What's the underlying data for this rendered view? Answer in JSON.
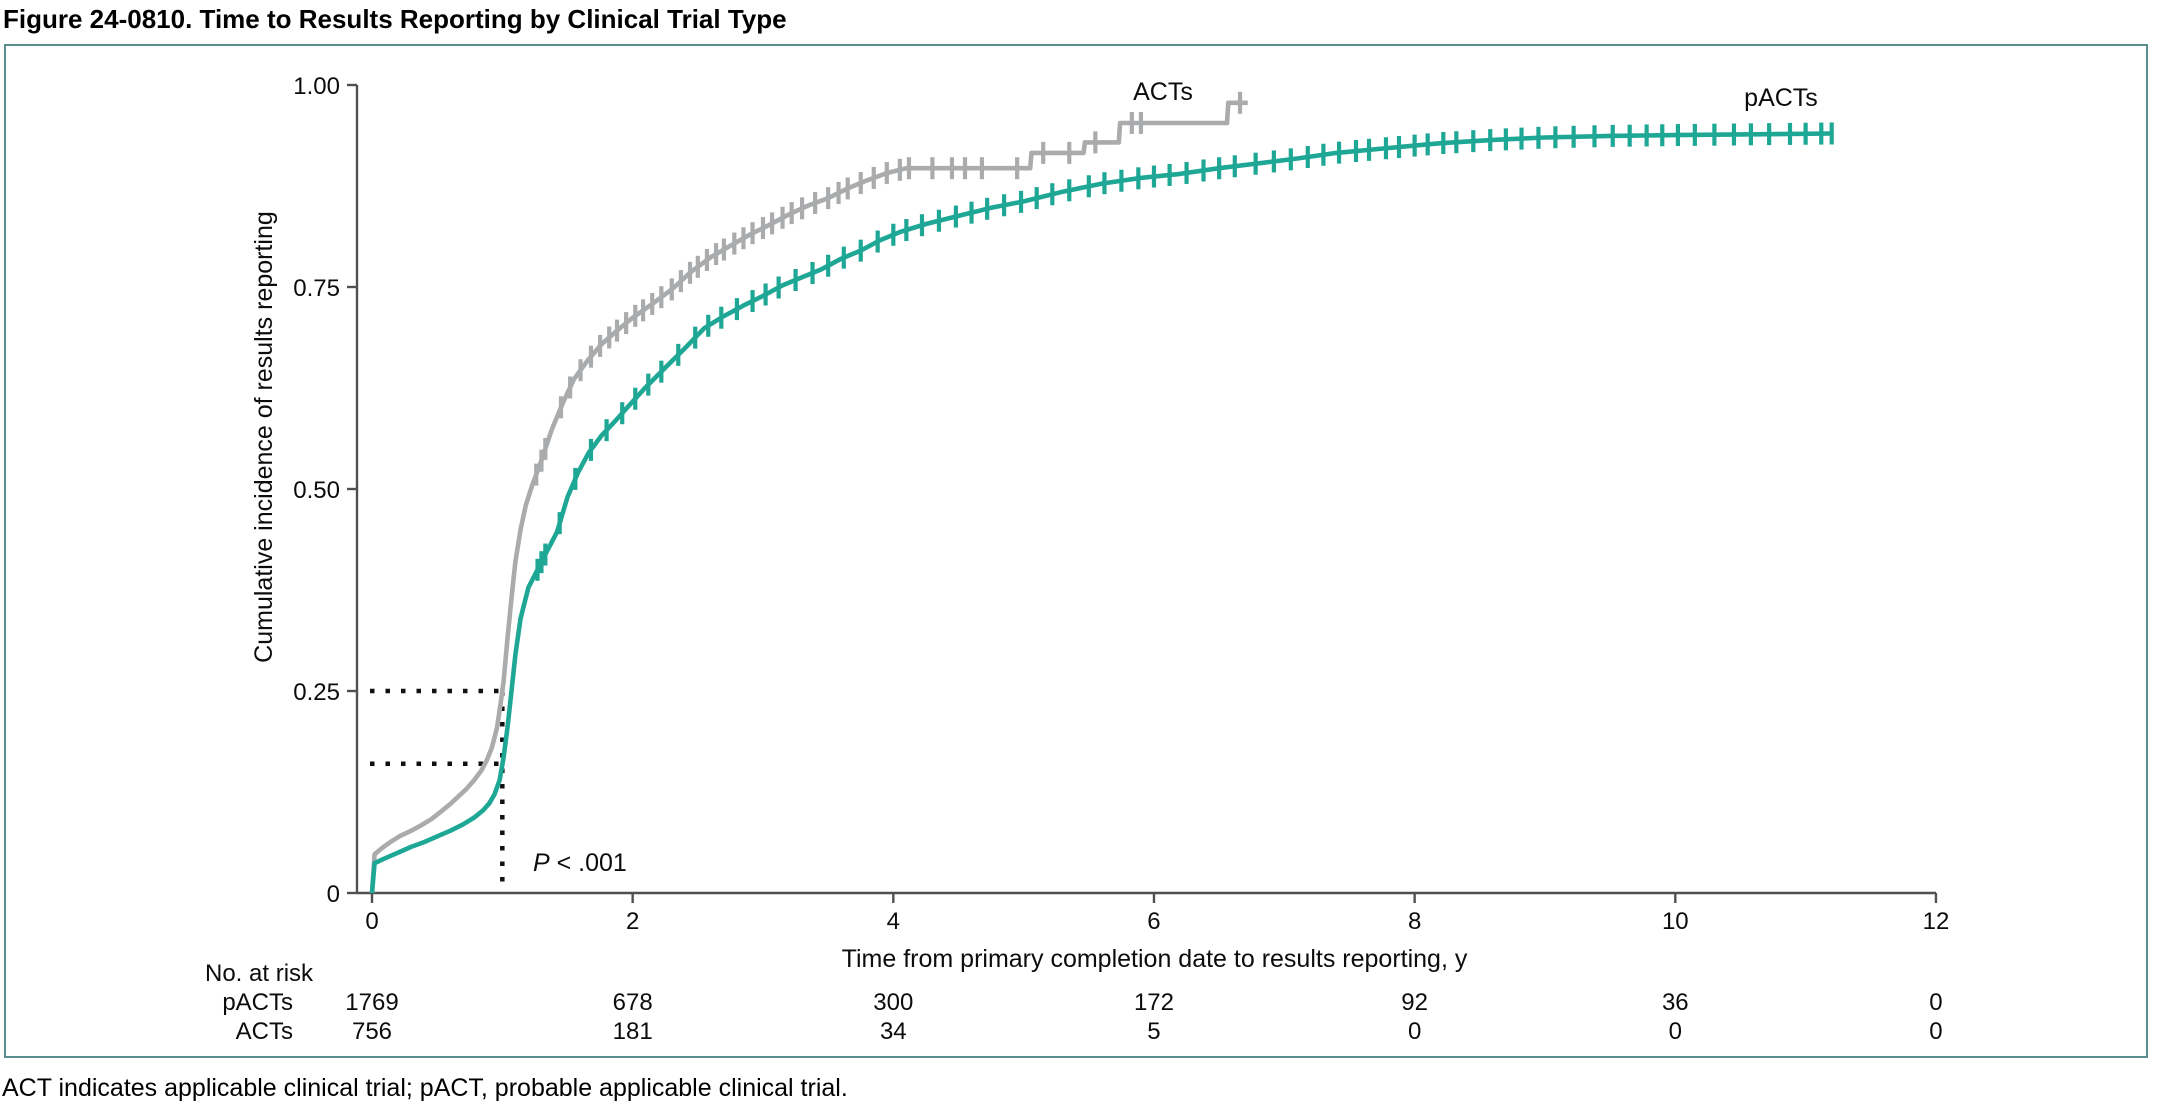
{
  "title": "Figure 24-0810. Time to Results Reporting by Clinical Trial Type",
  "footnote": "ACT indicates applicable clinical trial; pACT, probable applicable clinical trial.",
  "colors": {
    "act_gray": "#a9abad",
    "pact_teal": "#1ea795",
    "panel_border": "#5d8e8e",
    "axis": "#4f5052",
    "guide": "#111111"
  },
  "chart_data": {
    "type": "line",
    "subtype": "cumulative-incidence-step-curves",
    "title": "",
    "xlabel": "Time from primary completion date to results reporting, y",
    "ylabel": "Cumulative incidence of results reporting",
    "xlim": [
      0,
      12
    ],
    "ylim": [
      0,
      1
    ],
    "grid": false,
    "x_ticks": [
      {
        "v": 0,
        "label": "0"
      },
      {
        "v": 2,
        "label": "2"
      },
      {
        "v": 4,
        "label": "4"
      },
      {
        "v": 6,
        "label": "6"
      },
      {
        "v": 8,
        "label": "8"
      },
      {
        "v": 10,
        "label": "10"
      },
      {
        "v": 12,
        "label": "12"
      }
    ],
    "y_ticks": [
      {
        "v": 0,
        "label": "0"
      },
      {
        "v": 0.25,
        "label": "0.25"
      },
      {
        "v": 0.5,
        "label": "0.50"
      },
      {
        "v": 0.75,
        "label": "0.75"
      },
      {
        "v": 1,
        "label": "1.00"
      }
    ],
    "series": [
      {
        "name": "ACTs",
        "color": "#a9abad",
        "points": [
          [
            0,
            0
          ],
          [
            0.02,
            0.048
          ],
          [
            0.08,
            0.056
          ],
          [
            0.15,
            0.064
          ],
          [
            0.22,
            0.071
          ],
          [
            0.3,
            0.077
          ],
          [
            0.38,
            0.084
          ],
          [
            0.46,
            0.092
          ],
          [
            0.53,
            0.101
          ],
          [
            0.6,
            0.11
          ],
          [
            0.66,
            0.119
          ],
          [
            0.72,
            0.128
          ],
          [
            0.78,
            0.139
          ],
          [
            0.84,
            0.152
          ],
          [
            0.88,
            0.164
          ],
          [
            0.92,
            0.18
          ],
          [
            0.96,
            0.205
          ],
          [
            0.99,
            0.238
          ],
          [
            1.01,
            0.262
          ],
          [
            1.04,
            0.315
          ],
          [
            1.07,
            0.365
          ],
          [
            1.1,
            0.41
          ],
          [
            1.14,
            0.45
          ],
          [
            1.18,
            0.48
          ],
          [
            1.23,
            0.505
          ],
          [
            1.3,
            0.535
          ],
          [
            1.38,
            0.574
          ],
          [
            1.46,
            0.605
          ],
          [
            1.55,
            0.636
          ],
          [
            1.65,
            0.658
          ],
          [
            1.76,
            0.679
          ],
          [
            1.88,
            0.696
          ],
          [
            2.0,
            0.712
          ],
          [
            2.15,
            0.729
          ],
          [
            2.3,
            0.747
          ],
          [
            2.45,
            0.769
          ],
          [
            2.6,
            0.787
          ],
          [
            2.75,
            0.801
          ],
          [
            2.9,
            0.815
          ],
          [
            3.05,
            0.827
          ],
          [
            3.2,
            0.84
          ],
          [
            3.35,
            0.851
          ],
          [
            3.5,
            0.86
          ],
          [
            3.65,
            0.872
          ],
          [
            3.8,
            0.882
          ],
          [
            3.95,
            0.891
          ],
          [
            4.1,
            0.897
          ],
          [
            5.05,
            0.897
          ],
          [
            5.06,
            0.916
          ],
          [
            5.46,
            0.916
          ],
          [
            5.47,
            0.929
          ],
          [
            5.73,
            0.929
          ],
          [
            5.74,
            0.953
          ],
          [
            6.56,
            0.953
          ],
          [
            6.57,
            0.978
          ],
          [
            6.72,
            0.978
          ]
        ],
        "censor_times": [
          1.26,
          1.3,
          1.33,
          1.45,
          1.52,
          1.6,
          1.68,
          1.75,
          1.82,
          1.88,
          1.95,
          2.02,
          2.08,
          2.15,
          2.22,
          2.3,
          2.37,
          2.44,
          2.5,
          2.57,
          2.64,
          2.7,
          2.78,
          2.85,
          2.92,
          3.0,
          3.07,
          3.15,
          3.22,
          3.3,
          3.4,
          3.5,
          3.58,
          3.65,
          3.75,
          3.85,
          3.95,
          4.05,
          4.12,
          4.3,
          4.45,
          4.55,
          4.68,
          4.95,
          5.15,
          5.35,
          5.55,
          5.83,
          5.9,
          6.66
        ]
      },
      {
        "name": "pACTs",
        "color": "#1ea795",
        "points": [
          [
            0,
            0
          ],
          [
            0.02,
            0.037
          ],
          [
            0.1,
            0.043
          ],
          [
            0.2,
            0.05
          ],
          [
            0.3,
            0.057
          ],
          [
            0.4,
            0.063
          ],
          [
            0.5,
            0.07
          ],
          [
            0.6,
            0.077
          ],
          [
            0.7,
            0.085
          ],
          [
            0.78,
            0.093
          ],
          [
            0.85,
            0.102
          ],
          [
            0.9,
            0.111
          ],
          [
            0.94,
            0.122
          ],
          [
            0.98,
            0.14
          ],
          [
            1.01,
            0.168
          ],
          [
            1.04,
            0.205
          ],
          [
            1.07,
            0.25
          ],
          [
            1.1,
            0.295
          ],
          [
            1.14,
            0.34
          ],
          [
            1.2,
            0.378
          ],
          [
            1.27,
            0.4
          ],
          [
            1.34,
            0.422
          ],
          [
            1.42,
            0.447
          ],
          [
            1.5,
            0.49
          ],
          [
            1.58,
            0.52
          ],
          [
            1.66,
            0.544
          ],
          [
            1.76,
            0.566
          ],
          [
            1.86,
            0.583
          ],
          [
            1.96,
            0.601
          ],
          [
            2.1,
            0.626
          ],
          [
            2.25,
            0.65
          ],
          [
            2.4,
            0.674
          ],
          [
            2.55,
            0.699
          ],
          [
            2.7,
            0.714
          ],
          [
            2.85,
            0.727
          ],
          [
            3.0,
            0.739
          ],
          [
            3.15,
            0.752
          ],
          [
            3.3,
            0.762
          ],
          [
            3.45,
            0.772
          ],
          [
            3.6,
            0.785
          ],
          [
            3.75,
            0.795
          ],
          [
            3.9,
            0.808
          ],
          [
            4.05,
            0.818
          ],
          [
            4.25,
            0.828
          ],
          [
            4.5,
            0.838
          ],
          [
            4.75,
            0.848
          ],
          [
            5.0,
            0.856
          ],
          [
            5.3,
            0.868
          ],
          [
            5.6,
            0.878
          ],
          [
            5.9,
            0.885
          ],
          [
            6.2,
            0.89
          ],
          [
            6.5,
            0.897
          ],
          [
            6.8,
            0.903
          ],
          [
            7.1,
            0.909
          ],
          [
            7.4,
            0.916
          ],
          [
            7.8,
            0.922
          ],
          [
            8.2,
            0.928
          ],
          [
            8.6,
            0.932
          ],
          [
            9.0,
            0.935
          ],
          [
            9.5,
            0.937
          ],
          [
            10.0,
            0.938
          ],
          [
            10.6,
            0.939
          ],
          [
            11.2,
            0.94
          ]
        ],
        "censor_times": [
          1.27,
          1.3,
          1.33,
          1.44,
          1.56,
          1.68,
          1.8,
          1.92,
          2.02,
          2.12,
          2.22,
          2.35,
          2.48,
          2.58,
          2.68,
          2.8,
          2.92,
          3.02,
          3.12,
          3.25,
          3.38,
          3.5,
          3.62,
          3.75,
          3.88,
          4.0,
          4.1,
          4.22,
          4.35,
          4.48,
          4.6,
          4.72,
          4.85,
          4.98,
          5.1,
          5.22,
          5.35,
          5.5,
          5.62,
          5.75,
          5.88,
          6.0,
          6.12,
          6.25,
          6.38,
          6.5,
          6.62,
          6.78,
          6.92,
          7.05,
          7.18,
          7.3,
          7.42,
          7.55,
          7.65,
          7.78,
          7.88,
          8.0,
          8.1,
          8.22,
          8.32,
          8.45,
          8.58,
          8.7,
          8.82,
          8.95,
          9.08,
          9.22,
          9.38,
          9.52,
          9.65,
          9.78,
          9.9,
          10.02,
          10.15,
          10.3,
          10.45,
          10.58,
          10.72,
          10.88,
          11.0,
          11.12,
          11.2
        ]
      }
    ],
    "annotations": {
      "p_symbol": "P",
      "p_rest": " < .001",
      "guide_x": 1.0,
      "guide_y": [
        0.25,
        0.16
      ]
    },
    "risk_table": {
      "header": "No. at risk",
      "times": [
        0,
        2,
        4,
        6,
        8,
        10,
        12
      ],
      "rows": [
        {
          "label": "pACTs",
          "values": [
            "1769",
            "678",
            "300",
            "172",
            "92",
            "36",
            "0"
          ]
        },
        {
          "label": "ACTs",
          "values": [
            "756",
            "181",
            "34",
            "5",
            "0",
            "0",
            "0"
          ]
        }
      ]
    }
  }
}
